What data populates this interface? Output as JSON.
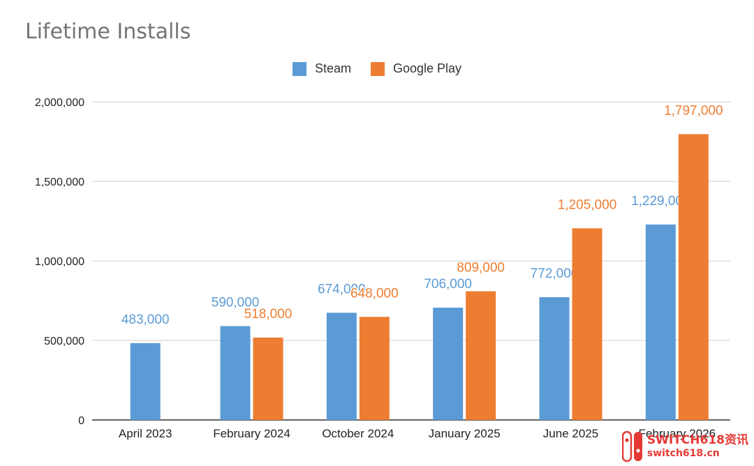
{
  "chart_data": {
    "type": "bar",
    "title": "Lifetime Installs",
    "categories": [
      "April 2023",
      "February 2024",
      "October 2024",
      "January 2025",
      "June 2025",
      "February 2026"
    ],
    "series": [
      {
        "name": "Steam",
        "color": "#5b9bd5",
        "values": [
          483000,
          590000,
          674000,
          706000,
          772000,
          1229000
        ],
        "labels": [
          "483,000",
          "590,000",
          "674,000",
          "706,000",
          "772,000",
          "1,229,000"
        ]
      },
      {
        "name": "Google Play",
        "color": "#ed7d31",
        "values": [
          null,
          518000,
          648000,
          809000,
          1205000,
          1797000
        ],
        "labels": [
          "",
          "518,000",
          "648,000",
          "809,000",
          "1,205,000",
          "1,797,000"
        ]
      }
    ],
    "y_ticks": [
      0,
      500000,
      1000000,
      1500000,
      2000000
    ],
    "y_tick_labels": [
      "0",
      "500,000",
      "1,000,000",
      "1,500,000",
      "2,000,000"
    ],
    "ylim": [
      0,
      2000000
    ],
    "grid": true,
    "legend_position": "top-center"
  },
  "watermark": {
    "line1": "SWITCH618资讯",
    "line2": "switch618.cn"
  }
}
